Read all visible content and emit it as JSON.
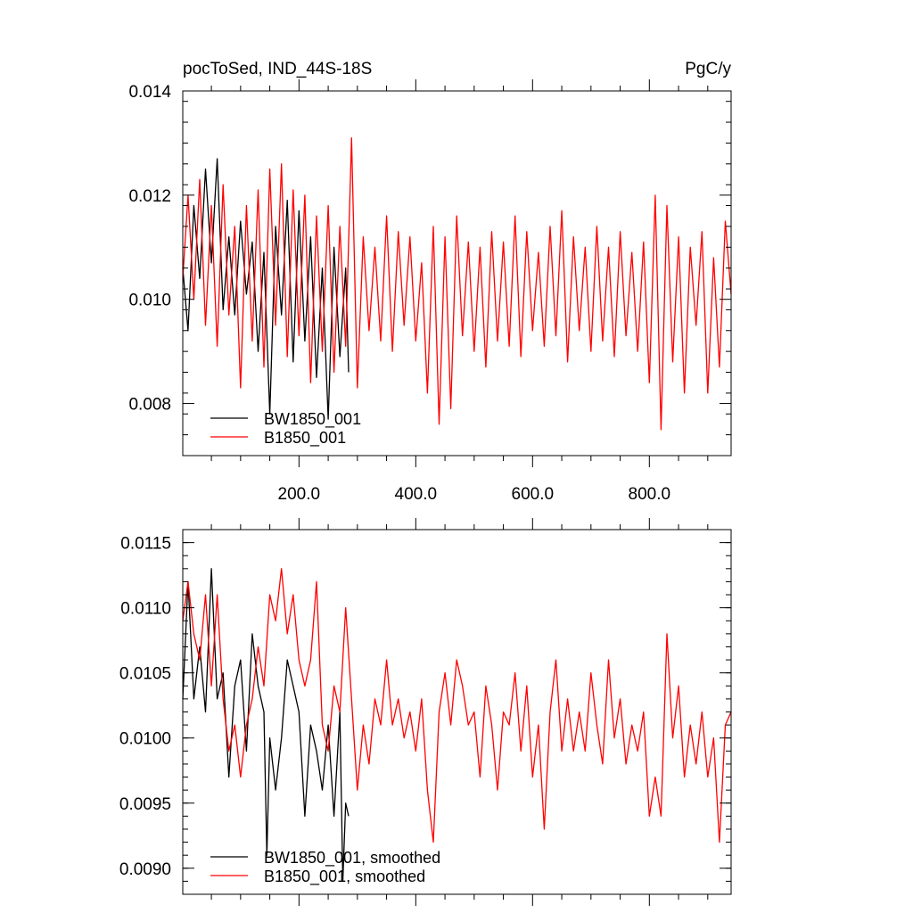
{
  "chart_data": [
    {
      "type": "line",
      "title": "pocToSed, IND_44S-18S",
      "units": "PgC/y",
      "xlabel": "",
      "ylabel": "",
      "xlim": [
        1,
        940
      ],
      "ylim": [
        0.007,
        0.014
      ],
      "xticks": [
        200,
        400,
        600,
        800
      ],
      "xtick_labels": [
        "200.0",
        "400.0",
        "600.0",
        "800.0"
      ],
      "yticks": [
        0.008,
        0.01,
        0.012,
        0.014
      ],
      "ytick_labels": [
        "0.008",
        "0.010",
        "0.012",
        "0.014"
      ],
      "grid": false,
      "legend_position": "bottom-left",
      "series": [
        {
          "name": "BW1850_001",
          "color": "#000000",
          "x": [
            1,
            10,
            20,
            30,
            40,
            50,
            60,
            70,
            80,
            90,
            100,
            110,
            120,
            130,
            140,
            150,
            160,
            170,
            180,
            190,
            200,
            210,
            220,
            230,
            240,
            250,
            260,
            270,
            280,
            285
          ],
          "y": [
            0.0106,
            0.0094,
            0.0118,
            0.0104,
            0.0125,
            0.0107,
            0.0127,
            0.0098,
            0.0112,
            0.0097,
            0.0115,
            0.0101,
            0.0111,
            0.009,
            0.0109,
            0.0078,
            0.0114,
            0.0097,
            0.0119,
            0.0088,
            0.0117,
            0.0092,
            0.0112,
            0.0085,
            0.0106,
            0.0077,
            0.011,
            0.0089,
            0.0106,
            0.0086
          ]
        },
        {
          "name": "B1850_001",
          "color": "#ff0000",
          "x": [
            1,
            10,
            20,
            30,
            40,
            50,
            60,
            70,
            80,
            90,
            100,
            110,
            120,
            130,
            140,
            150,
            160,
            170,
            180,
            190,
            200,
            210,
            220,
            230,
            240,
            250,
            260,
            270,
            280,
            290,
            300,
            310,
            320,
            330,
            340,
            350,
            360,
            370,
            380,
            390,
            400,
            410,
            420,
            430,
            440,
            450,
            460,
            470,
            480,
            490,
            500,
            510,
            520,
            530,
            540,
            550,
            560,
            570,
            580,
            590,
            600,
            610,
            620,
            630,
            640,
            650,
            660,
            670,
            680,
            690,
            700,
            710,
            720,
            730,
            740,
            750,
            760,
            770,
            780,
            790,
            800,
            810,
            820,
            830,
            840,
            850,
            860,
            870,
            880,
            890,
            900,
            910,
            920,
            930,
            940
          ],
          "y": [
            0.0104,
            0.012,
            0.01,
            0.0123,
            0.0095,
            0.0118,
            0.0091,
            0.0122,
            0.0097,
            0.0114,
            0.0083,
            0.0118,
            0.0092,
            0.0121,
            0.0087,
            0.0125,
            0.0095,
            0.0126,
            0.0089,
            0.0121,
            0.0093,
            0.012,
            0.0084,
            0.0116,
            0.009,
            0.0118,
            0.0086,
            0.0114,
            0.0091,
            0.0131,
            0.0083,
            0.0112,
            0.0094,
            0.011,
            0.0092,
            0.0116,
            0.009,
            0.0113,
            0.0095,
            0.0112,
            0.0092,
            0.0107,
            0.0082,
            0.0114,
            0.0076,
            0.0112,
            0.0079,
            0.0116,
            0.0093,
            0.0111,
            0.009,
            0.011,
            0.0087,
            0.0113,
            0.0092,
            0.0111,
            0.0091,
            0.0116,
            0.0089,
            0.0113,
            0.0094,
            0.0109,
            0.0091,
            0.0114,
            0.0093,
            0.0117,
            0.0088,
            0.0112,
            0.0094,
            0.011,
            0.009,
            0.0114,
            0.0092,
            0.011,
            0.0089,
            0.0113,
            0.0093,
            0.0109,
            0.009,
            0.0111,
            0.0084,
            0.012,
            0.0075,
            0.0118,
            0.0088,
            0.0112,
            0.0082,
            0.011,
            0.0095,
            0.0113,
            0.0082,
            0.0108,
            0.0087,
            0.0115,
            0.0101
          ]
        }
      ]
    },
    {
      "type": "line",
      "title": "",
      "xlabel": "",
      "ylabel": "",
      "xlim": [
        1,
        940
      ],
      "ylim": [
        0.0088,
        0.0116
      ],
      "xticks": [
        200,
        400,
        600,
        800
      ],
      "yticks": [
        0.009,
        0.0095,
        0.01,
        0.0105,
        0.011,
        0.0115
      ],
      "ytick_labels": [
        "0.0090",
        "0.0095",
        "0.0100",
        "0.0105",
        "0.0110",
        "0.0115"
      ],
      "grid": false,
      "legend_position": "bottom-left",
      "series": [
        {
          "name": "BW1850_001, smoothed",
          "color": "#000000",
          "x": [
            1,
            10,
            20,
            30,
            40,
            50,
            60,
            70,
            80,
            90,
            100,
            110,
            120,
            130,
            140,
            145,
            150,
            160,
            170,
            180,
            190,
            200,
            210,
            220,
            230,
            240,
            250,
            260,
            270,
            275,
            280,
            285
          ],
          "y": [
            0.0103,
            0.0112,
            0.0103,
            0.0107,
            0.0102,
            0.0113,
            0.0103,
            0.0105,
            0.0097,
            0.0104,
            0.0106,
            0.0099,
            0.0108,
            0.0104,
            0.0102,
            0.0091,
            0.01,
            0.0096,
            0.01,
            0.0106,
            0.0104,
            0.0102,
            0.0094,
            0.0101,
            0.0099,
            0.0096,
            0.0101,
            0.0094,
            0.0102,
            0.0089,
            0.0095,
            0.0094
          ]
        },
        {
          "name": "B1850_001, smoothed",
          "color": "#ff0000",
          "x": [
            1,
            10,
            20,
            30,
            40,
            50,
            60,
            70,
            80,
            90,
            100,
            110,
            120,
            130,
            140,
            150,
            160,
            170,
            180,
            190,
            200,
            210,
            220,
            230,
            240,
            250,
            260,
            270,
            280,
            290,
            300,
            310,
            320,
            330,
            340,
            350,
            360,
            370,
            380,
            390,
            400,
            410,
            420,
            430,
            440,
            450,
            460,
            470,
            480,
            490,
            500,
            510,
            520,
            530,
            540,
            550,
            560,
            570,
            580,
            590,
            600,
            610,
            620,
            630,
            640,
            650,
            660,
            670,
            680,
            690,
            700,
            710,
            720,
            730,
            740,
            750,
            760,
            770,
            780,
            790,
            800,
            810,
            820,
            830,
            840,
            850,
            860,
            870,
            880,
            890,
            900,
            910,
            920,
            930,
            940
          ],
          "y": [
            0.0109,
            0.0112,
            0.0108,
            0.0106,
            0.0111,
            0.0104,
            0.0111,
            0.0103,
            0.0099,
            0.0101,
            0.0097,
            0.0101,
            0.0103,
            0.0107,
            0.0104,
            0.0111,
            0.0109,
            0.0113,
            0.0108,
            0.0111,
            0.0106,
            0.0104,
            0.0106,
            0.0112,
            0.0101,
            0.0099,
            0.0104,
            0.0102,
            0.011,
            0.0103,
            0.0096,
            0.0101,
            0.0098,
            0.0103,
            0.0101,
            0.0106,
            0.0101,
            0.0103,
            0.01,
            0.0102,
            0.0099,
            0.0103,
            0.0096,
            0.0092,
            0.0102,
            0.0105,
            0.0101,
            0.0106,
            0.0104,
            0.0101,
            0.0102,
            0.0097,
            0.0104,
            0.0101,
            0.0096,
            0.0102,
            0.0101,
            0.0105,
            0.0099,
            0.0104,
            0.0097,
            0.0101,
            0.0093,
            0.0102,
            0.0106,
            0.0099,
            0.0103,
            0.0099,
            0.0102,
            0.0099,
            0.0105,
            0.0101,
            0.0098,
            0.0106,
            0.01,
            0.0103,
            0.0098,
            0.0101,
            0.0099,
            0.0102,
            0.0094,
            0.0097,
            0.0094,
            0.0108,
            0.01,
            0.0104,
            0.0097,
            0.0101,
            0.0098,
            0.0102,
            0.0097,
            0.01,
            0.0092,
            0.0101,
            0.0102
          ]
        }
      ]
    }
  ]
}
